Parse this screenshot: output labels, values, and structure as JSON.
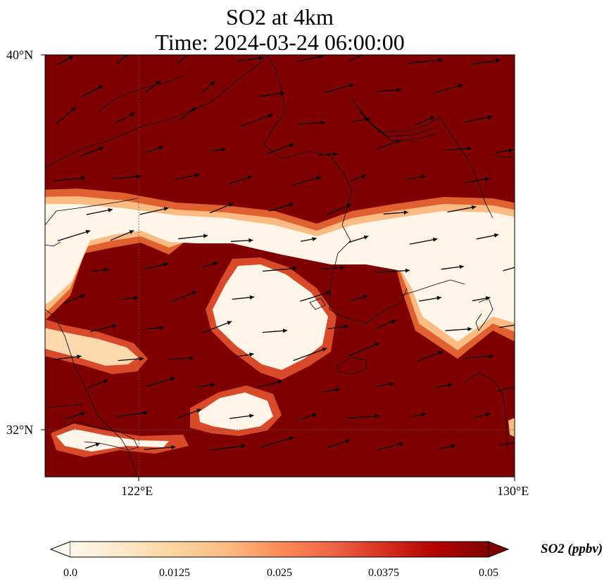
{
  "title": {
    "line1": "SO2 at 4km",
    "line2": "Time: 2024-03-24 06:00:00"
  },
  "axes": {
    "lat_ticks": [
      {
        "value": 40,
        "label": "40°N"
      },
      {
        "value": 32,
        "label": "32°N"
      }
    ],
    "lon_ticks": [
      {
        "value": 122,
        "label": "122°E"
      },
      {
        "value": 130,
        "label": "130°E"
      }
    ],
    "gridlines": "dotted",
    "extent": {
      "lon_min": 120,
      "lon_max": 130,
      "lat_min": 31,
      "lat_max": 40
    }
  },
  "colorbar": {
    "label": "SO2 (ppbv)",
    "min": 0.0,
    "max": 0.05,
    "extend": "both",
    "colormap": "OrRd",
    "stops": [
      "#fff7ec",
      "#fee8c8",
      "#fdd49e",
      "#fdbb84",
      "#fc8d59",
      "#ef6548",
      "#d7301f",
      "#b30000",
      "#7f0000"
    ],
    "ticks": [
      "0.0",
      "0.0125",
      "0.025",
      "0.0375",
      "0.05"
    ]
  },
  "map": {
    "background_color": "#7f0000",
    "plume_color": "#fff5e8",
    "layers": [
      "coastline",
      "wind-vectors",
      "so2-field"
    ]
  }
}
